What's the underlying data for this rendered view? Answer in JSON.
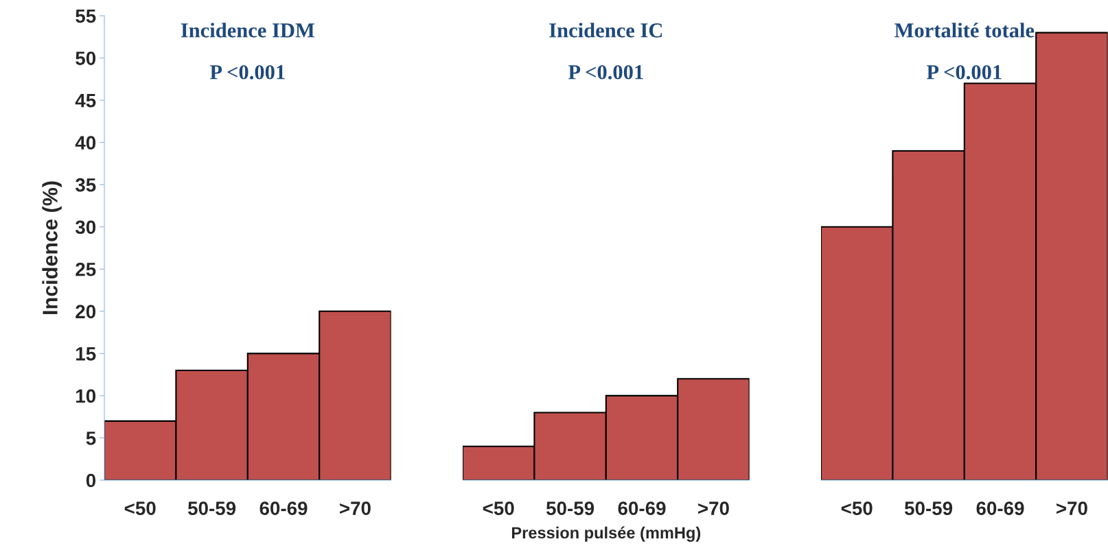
{
  "chart_data": [
    {
      "type": "bar",
      "title": "Incidence IDM",
      "subtitle": "P <0.001",
      "ylabel": "Incidence (%)",
      "categories": [
        "<50",
        "50-59",
        "60-69",
        ">70"
      ],
      "values": [
        7,
        13,
        15,
        20
      ],
      "color": "#c0504d",
      "ylim": [
        0,
        55
      ],
      "yticks": [
        0,
        5,
        10,
        15,
        20,
        25,
        30,
        35,
        40,
        45,
        50,
        55
      ],
      "grid": false
    },
    {
      "type": "bar",
      "title": "Incidence IC",
      "subtitle": "P <0.001",
      "xlabel": "Pression pulsée (mmHg)",
      "categories": [
        "<50",
        "50-59",
        "60-69",
        ">70"
      ],
      "values": [
        4,
        8,
        10,
        12
      ],
      "color": "#c0504d",
      "ylim": [
        0,
        55
      ],
      "tick_labels": "x",
      "grid": false
    },
    {
      "type": "bar",
      "title": "Mortalité totale",
      "subtitle": "P <0.001",
      "categories": [
        "<50",
        "50-59",
        "60-69",
        ">70"
      ],
      "values": [
        30,
        39,
        47,
        53
      ],
      "color": "#c0504d",
      "ylim": [
        0,
        55
      ],
      "tick_labels": "x",
      "grid": false
    }
  ]
}
